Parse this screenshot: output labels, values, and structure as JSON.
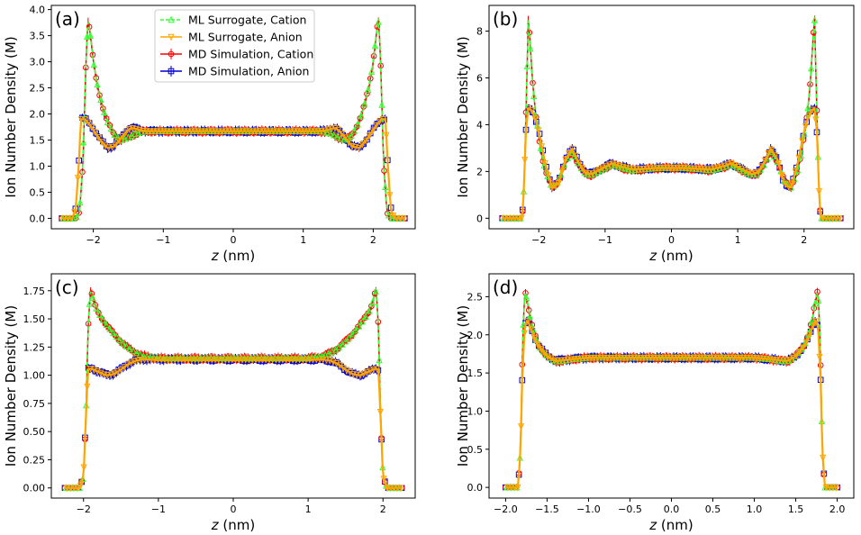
{
  "colors": {
    "ml_cation": "#33ff33",
    "ml_anion": "#ffa500",
    "md_cation": "#ff0000",
    "md_anion": "#0000cc"
  },
  "legend": {
    "placement": "top-center of panel (a)",
    "entries": [
      {
        "label": "ML Surrogate, Cation",
        "marker": "triangle-up",
        "color": "#33ff33",
        "line": "dashed"
      },
      {
        "label": "ML Surrogate, Anion",
        "marker": "triangle-down",
        "color": "#ffa500",
        "line": "solid"
      },
      {
        "label": "MD Simulation, Cation",
        "marker": "circle",
        "color": "#ff0000",
        "line": "solid"
      },
      {
        "label": "MD Simulation, Anion",
        "marker": "square",
        "color": "#0000cc",
        "line": "solid"
      }
    ]
  },
  "chart_data": [
    {
      "panel": "(a)",
      "type": "line",
      "xlabel": "z (nm)",
      "ylabel": "Ion Number Density (M)",
      "xlim": [
        -2.6,
        2.6
      ],
      "ylim": [
        -0.2,
        4.08
      ],
      "xticks": [
        "−2",
        "−1",
        "0",
        "1",
        "2"
      ],
      "xtick_values": [
        -2,
        -1,
        0,
        1,
        2
      ],
      "yticks": [
        "0.0",
        "0.5",
        "1.0",
        "1.5",
        "2.0",
        "2.5",
        "3.0",
        "3.5",
        "4.0"
      ],
      "ytick_values": [
        0,
        0.5,
        1,
        1.5,
        2,
        2.5,
        3,
        3.5,
        4
      ],
      "grid": false,
      "series": [
        {
          "name": "ML Surrogate, Cation",
          "x": [
            -2.45,
            -2.25,
            -2.2,
            -2.15,
            -2.1,
            -2.08,
            -2.05,
            -2.0,
            -1.95,
            -1.9,
            -1.85,
            -1.8,
            -1.7,
            -1.6,
            -1.5,
            -1.4,
            -1.3,
            -1.2,
            -1.0,
            -0.5,
            0,
            0.5,
            1.0,
            1.2,
            1.3,
            1.4,
            1.5,
            1.6,
            1.7,
            1.8,
            1.85,
            1.9,
            1.95,
            2.0,
            2.05,
            2.08,
            2.1,
            2.15,
            2.2,
            2.25,
            2.45
          ],
          "y": [
            0,
            0,
            0.1,
            1.0,
            3.2,
            3.8,
            3.6,
            3.0,
            2.6,
            2.3,
            2.05,
            1.85,
            1.6,
            1.5,
            1.55,
            1.62,
            1.66,
            1.67,
            1.67,
            1.67,
            1.67,
            1.67,
            1.67,
            1.67,
            1.66,
            1.62,
            1.55,
            1.5,
            1.6,
            1.85,
            2.05,
            2.3,
            2.6,
            3.0,
            3.6,
            3.8,
            3.2,
            1.0,
            0.1,
            0,
            0
          ]
        },
        {
          "name": "ML Surrogate, Anion",
          "x": [
            -2.45,
            -2.3,
            -2.25,
            -2.2,
            -2.18,
            -2.12,
            -2.05,
            -2.0,
            -1.9,
            -1.8,
            -1.7,
            -1.6,
            -1.5,
            -1.45,
            -1.4,
            -1.3,
            -1.2,
            -1.0,
            -0.5,
            0,
            0.5,
            1.0,
            1.2,
            1.3,
            1.4,
            1.45,
            1.5,
            1.6,
            1.7,
            1.8,
            1.9,
            2.0,
            2.05,
            2.12,
            2.18,
            2.2,
            2.25,
            2.3,
            2.45
          ],
          "y": [
            0,
            0,
            0.2,
            1.2,
            1.9,
            1.9,
            1.8,
            1.7,
            1.5,
            1.35,
            1.38,
            1.55,
            1.7,
            1.73,
            1.72,
            1.68,
            1.67,
            1.67,
            1.67,
            1.67,
            1.67,
            1.67,
            1.67,
            1.68,
            1.72,
            1.73,
            1.7,
            1.55,
            1.38,
            1.35,
            1.5,
            1.7,
            1.8,
            1.9,
            1.9,
            1.2,
            0.2,
            0,
            0
          ]
        }
      ]
    },
    {
      "panel": "(b)",
      "type": "line",
      "xlabel": "z (nm)",
      "ylabel": "Ion Number Density (M)",
      "xlim": [
        -2.75,
        2.75
      ],
      "ylim": [
        -0.45,
        9.1
      ],
      "xticks": [
        "−2",
        "−1",
        "0",
        "1",
        "2"
      ],
      "xtick_values": [
        -2,
        -1,
        0,
        1,
        2
      ],
      "yticks": [
        "0",
        "2",
        "4",
        "6",
        "8"
      ],
      "ytick_values": [
        0,
        2,
        4,
        6,
        8
      ],
      "grid": false,
      "series": [
        {
          "name": "ML Surrogate, Cation",
          "x": [
            -2.55,
            -2.25,
            -2.22,
            -2.18,
            -2.16,
            -2.13,
            -2.1,
            -2.05,
            -2.0,
            -1.95,
            -1.9,
            -1.8,
            -1.7,
            -1.6,
            -1.5,
            -1.4,
            -1.3,
            -1.2,
            -1.0,
            -0.9,
            -0.8,
            -0.6,
            -0.4,
            -0.2,
            0,
            0.2,
            0.4,
            0.6,
            0.8,
            0.9,
            1.0,
            1.2,
            1.3,
            1.4,
            1.5,
            1.6,
            1.7,
            1.8,
            1.9,
            1.95,
            2.0,
            2.05,
            2.1,
            2.13,
            2.16,
            2.18,
            2.22,
            2.25,
            2.55
          ],
          "y": [
            0,
            0,
            1.5,
            6.0,
            8.5,
            7.5,
            6.0,
            4.5,
            3.5,
            2.6,
            2.0,
            1.3,
            1.6,
            2.4,
            2.85,
            2.3,
            1.9,
            1.85,
            2.15,
            2.3,
            2.2,
            2.05,
            2.1,
            2.15,
            2.15,
            2.15,
            2.1,
            2.05,
            2.2,
            2.3,
            2.15,
            1.85,
            1.9,
            2.3,
            2.85,
            2.4,
            1.6,
            1.3,
            2.0,
            2.6,
            3.5,
            4.5,
            6.0,
            7.5,
            8.5,
            6.0,
            1.5,
            0,
            0
          ]
        },
        {
          "name": "ML Surrogate, Anion",
          "x": [
            -2.55,
            -2.25,
            -2.22,
            -2.2,
            -2.16,
            -2.1,
            -2.05,
            -2.0,
            -1.95,
            -1.9,
            -1.8,
            -1.7,
            -1.6,
            -1.5,
            -1.4,
            -1.3,
            -1.2,
            -1.0,
            -0.9,
            -0.8,
            -0.6,
            -0.4,
            -0.2,
            0,
            0.2,
            0.4,
            0.6,
            0.8,
            0.9,
            1.0,
            1.2,
            1.3,
            1.4,
            1.5,
            1.6,
            1.7,
            1.8,
            1.9,
            1.95,
            2.0,
            2.05,
            2.1,
            2.16,
            2.2,
            2.22,
            2.25,
            2.55
          ],
          "y": [
            0,
            0,
            1.5,
            3.5,
            4.7,
            4.6,
            4.2,
            3.7,
            3.0,
            2.3,
            1.3,
            1.5,
            2.5,
            3.0,
            2.4,
            1.95,
            1.9,
            2.2,
            2.35,
            2.25,
            2.1,
            2.12,
            2.15,
            2.15,
            2.15,
            2.12,
            2.1,
            2.25,
            2.35,
            2.2,
            1.9,
            1.95,
            2.4,
            3.0,
            2.5,
            1.5,
            1.3,
            2.3,
            3.0,
            3.7,
            4.2,
            4.6,
            4.7,
            3.5,
            1.5,
            0,
            0
          ]
        }
      ]
    },
    {
      "panel": "(c)",
      "type": "line",
      "xlabel": "z (nm)",
      "ylabel": "Ion Number Density (M)",
      "xlim": [
        -2.43,
        2.43
      ],
      "ylim": [
        -0.09,
        1.9
      ],
      "xticks": [
        "−2",
        "−1",
        "0",
        "1",
        "2"
      ],
      "xtick_values": [
        -2,
        -1,
        0,
        1,
        2
      ],
      "yticks": [
        "0.00",
        "0.25",
        "0.50",
        "0.75",
        "1.00",
        "1.25",
        "1.50",
        "1.75"
      ],
      "ytick_values": [
        0,
        0.25,
        0.5,
        0.75,
        1.0,
        1.25,
        1.5,
        1.75
      ],
      "grid": false,
      "series": [
        {
          "name": "ML Surrogate, Cation",
          "x": [
            -2.25,
            -2.05,
            -2.0,
            -1.97,
            -1.94,
            -1.91,
            -1.88,
            -1.85,
            -1.8,
            -1.7,
            -1.6,
            -1.5,
            -1.4,
            -1.3,
            -1.2,
            -1.0,
            -0.5,
            0,
            0.5,
            1.0,
            1.2,
            1.3,
            1.4,
            1.5,
            1.6,
            1.7,
            1.8,
            1.85,
            1.88,
            1.91,
            1.94,
            1.97,
            2.0,
            2.05,
            2.25
          ],
          "y": [
            0,
            0,
            0.1,
            0.6,
            1.4,
            1.75,
            1.7,
            1.62,
            1.55,
            1.45,
            1.37,
            1.3,
            1.24,
            1.2,
            1.17,
            1.15,
            1.15,
            1.15,
            1.15,
            1.15,
            1.17,
            1.2,
            1.24,
            1.3,
            1.37,
            1.45,
            1.55,
            1.62,
            1.7,
            1.75,
            1.4,
            0.6,
            0.1,
            0,
            0
          ]
        },
        {
          "name": "ML Surrogate, Anion",
          "x": [
            -2.25,
            -2.05,
            -2.0,
            -1.97,
            -1.94,
            -1.9,
            -1.8,
            -1.7,
            -1.6,
            -1.5,
            -1.4,
            -1.3,
            -1.2,
            -1.0,
            -0.5,
            0,
            0.5,
            1.0,
            1.2,
            1.3,
            1.4,
            1.5,
            1.6,
            1.7,
            1.8,
            1.9,
            1.94,
            1.97,
            2.0,
            2.05,
            2.25
          ],
          "y": [
            0,
            0,
            0.1,
            0.6,
            1.05,
            1.06,
            1.03,
            1.0,
            1.01,
            1.05,
            1.1,
            1.13,
            1.14,
            1.14,
            1.14,
            1.14,
            1.14,
            1.14,
            1.14,
            1.13,
            1.1,
            1.05,
            1.01,
            1.0,
            1.03,
            1.06,
            1.05,
            0.6,
            0.1,
            0,
            0
          ]
        }
      ]
    },
    {
      "panel": "(d)",
      "type": "line",
      "xlabel": "z (nm)",
      "ylabel": "Ion Number Density (M)",
      "xlim": [
        -2.2,
        2.2
      ],
      "ylim": [
        -0.14,
        2.8
      ],
      "xticks": [
        "−2.0",
        "−1.5",
        "−1.0",
        "−0.5",
        "0.0",
        "0.5",
        "1.0",
        "1.5",
        "2.0"
      ],
      "xtick_values": [
        -2.0,
        -1.5,
        -1.0,
        -0.5,
        0,
        0.5,
        1.0,
        1.5,
        2.0
      ],
      "yticks": [
        "0.0",
        "0.5",
        "1.0",
        "1.5",
        "2.0",
        "2.5"
      ],
      "ytick_values": [
        0,
        0.5,
        1.0,
        1.5,
        2.0,
        2.5
      ],
      "grid": false,
      "series": [
        {
          "name": "ML Surrogate, Cation",
          "x": [
            -2.0,
            -1.85,
            -1.82,
            -1.8,
            -1.78,
            -1.76,
            -1.74,
            -1.7,
            -1.65,
            -1.6,
            -1.5,
            -1.4,
            -1.3,
            -1.2,
            -1.0,
            -0.5,
            0,
            0.5,
            1.0,
            1.2,
            1.3,
            1.4,
            1.5,
            1.6,
            1.65,
            1.7,
            1.74,
            1.76,
            1.78,
            1.8,
            1.82,
            1.85,
            2.0
          ],
          "y": [
            0,
            0,
            0.5,
            1.6,
            2.4,
            2.55,
            2.45,
            2.2,
            2.0,
            1.85,
            1.72,
            1.65,
            1.66,
            1.68,
            1.7,
            1.7,
            1.7,
            1.7,
            1.7,
            1.68,
            1.66,
            1.65,
            1.72,
            1.85,
            2.0,
            2.2,
            2.45,
            2.55,
            2.4,
            1.6,
            0.5,
            0,
            0
          ]
        },
        {
          "name": "ML Surrogate, Anion",
          "x": [
            -2.0,
            -1.85,
            -1.82,
            -1.8,
            -1.77,
            -1.74,
            -1.7,
            -1.65,
            -1.6,
            -1.5,
            -1.4,
            -1.3,
            -1.2,
            -1.0,
            -0.5,
            0,
            0.5,
            1.0,
            1.2,
            1.3,
            1.4,
            1.5,
            1.6,
            1.65,
            1.7,
            1.74,
            1.77,
            1.8,
            1.82,
            1.85,
            2.0
          ],
          "y": [
            0,
            0,
            0.5,
            1.4,
            2.1,
            2.2,
            2.1,
            1.95,
            1.85,
            1.72,
            1.66,
            1.67,
            1.68,
            1.7,
            1.7,
            1.7,
            1.7,
            1.7,
            1.68,
            1.67,
            1.66,
            1.72,
            1.85,
            1.95,
            2.1,
            2.2,
            2.1,
            1.4,
            0.5,
            0,
            0
          ]
        }
      ]
    }
  ]
}
